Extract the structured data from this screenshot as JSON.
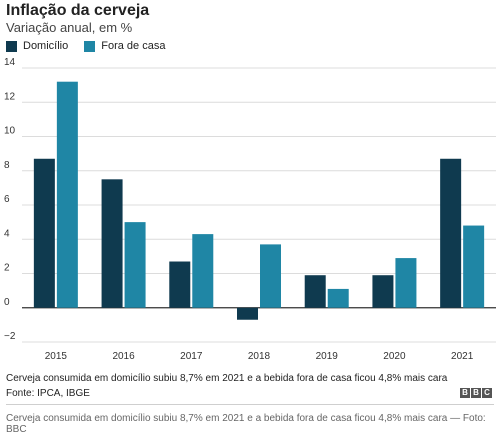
{
  "header": {
    "title": "Inflação da cerveja",
    "subtitle": "Variação anual, em %"
  },
  "legend": {
    "items": [
      {
        "label": "Domicílio",
        "color": "#0f3a4f"
      },
      {
        "label": "Fora de casa",
        "color": "#1f86a5"
      }
    ]
  },
  "chart_data": {
    "type": "bar",
    "title": "Inflação da cerveja",
    "subtitle": "Variação anual, em %",
    "categories": [
      "2015",
      "2016",
      "2017",
      "2018",
      "2019",
      "2020",
      "2021"
    ],
    "series": [
      {
        "name": "Domicílio",
        "color": "#0f3a4f",
        "values": [
          8.7,
          7.5,
          2.7,
          -0.7,
          1.9,
          1.9,
          8.7
        ]
      },
      {
        "name": "Fora de casa",
        "color": "#1f86a5",
        "values": [
          13.2,
          5.0,
          4.3,
          3.7,
          1.1,
          2.9,
          4.8
        ]
      }
    ],
    "ylim": [
      -2,
      14
    ],
    "yticks": [
      -2,
      0,
      2,
      4,
      6,
      8,
      10,
      12,
      14
    ],
    "ytick_labels": [
      "−2",
      "0",
      "2",
      "4",
      "6",
      "8",
      "10",
      "12",
      "14"
    ],
    "grid": true,
    "legend_position": "top-left"
  },
  "footer": {
    "caption": "Cerveja consumida em domicílio subiu 8,7% em 2021 e a bebida fora de casa ficou 4,8% mais cara",
    "source": "Fonte: IPCA, IBGE",
    "logo": [
      "B",
      "B",
      "C"
    ],
    "credit": "Cerveja consumida em domicílio subiu 8,7% em 2021 e a bebida fora de casa ficou 4,8% mais cara — Foto: BBC"
  }
}
